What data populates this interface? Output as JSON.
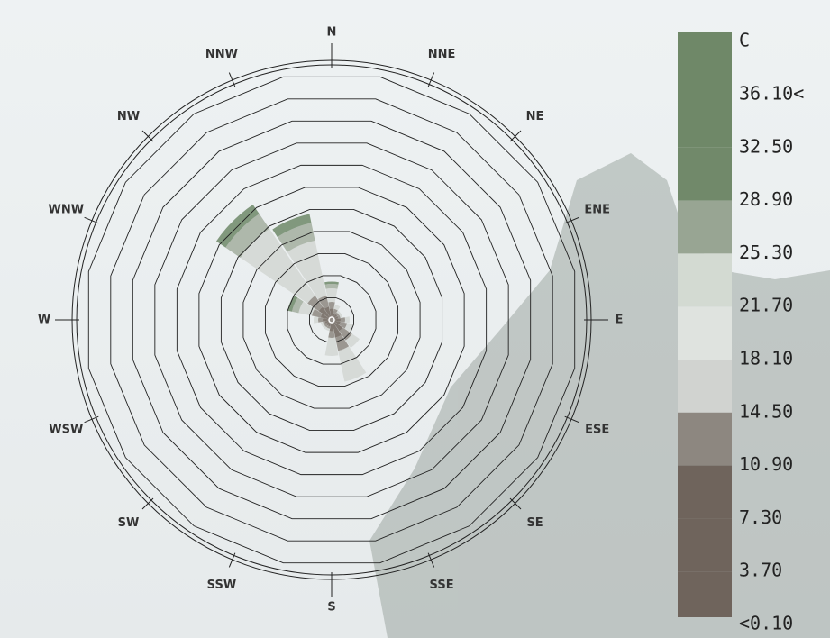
{
  "chart_data": {
    "type": "windrose",
    "categories": [
      "N",
      "NNE",
      "NE",
      "ENE",
      "E",
      "ESE",
      "SE",
      "SSE",
      "S",
      "SSW",
      "SW",
      "WSW",
      "W",
      "WNW",
      "NW",
      "NNW"
    ],
    "rlim": [
      0,
      11
    ],
    "rticks": [
      1,
      2,
      3,
      4,
      5,
      6,
      7,
      8,
      9,
      10,
      11
    ],
    "grid": true,
    "series": [
      {
        "color": "#6f645c",
        "values": [
          0.5,
          0.3,
          0.3,
          0.3,
          0.4,
          0.4,
          0.6,
          0.8,
          0.5,
          0.3,
          0.3,
          0.3,
          0.4,
          0.5,
          0.7,
          0.6
        ]
      },
      {
        "color": "#8d8780",
        "values": [
          0.3,
          0.2,
          0.1,
          0.1,
          0.2,
          0.3,
          0.5,
          0.6,
          0.3,
          0.1,
          0.1,
          0.1,
          0.2,
          0.4,
          0.6,
          0.5
        ]
      },
      {
        "color": "#d2d6d2",
        "values": [
          0.6,
          0.2,
          0.1,
          0.1,
          0.2,
          0.3,
          0.4,
          1.4,
          0.8,
          0.1,
          0.1,
          0.1,
          0.2,
          0.6,
          3.6,
          2.5
        ]
      },
      {
        "color": "#a3ae9f",
        "values": [
          0.2,
          0,
          0,
          0,
          0,
          0,
          0,
          0,
          0,
          0,
          0,
          0,
          0,
          0.3,
          0.8,
          0.8
        ]
      },
      {
        "color": "#6f8868",
        "values": [
          0.1,
          0,
          0,
          0,
          0,
          0,
          0,
          0,
          0,
          0,
          0,
          0,
          0,
          0.2,
          0.5,
          0.4
        ]
      }
    ],
    "legend_title": "C",
    "cticks": [
      {
        "value": 36.1,
        "label": "36.10<"
      },
      {
        "value": 32.5,
        "label": "32.50"
      },
      {
        "value": 28.9,
        "label": "28.90"
      },
      {
        "value": 25.3,
        "label": "25.30"
      },
      {
        "value": 21.7,
        "label": "21.70"
      },
      {
        "value": 18.1,
        "label": "18.10"
      },
      {
        "value": 14.5,
        "label": "14.50"
      },
      {
        "value": 10.9,
        "label": "10.90"
      },
      {
        "value": 7.3,
        "label": "7.30"
      },
      {
        "value": 3.7,
        "label": "3.70"
      },
      {
        "value": 0.1,
        "label": "<0.10"
      }
    ],
    "ccolors": [
      "#6f8868",
      "#6f8868",
      "#71896a",
      "#98a593",
      "#d3dad2",
      "#dfe3df",
      "#d1d3d0",
      "#8d8780",
      "#6f645c",
      "#6f645c",
      "#6f645c"
    ]
  }
}
